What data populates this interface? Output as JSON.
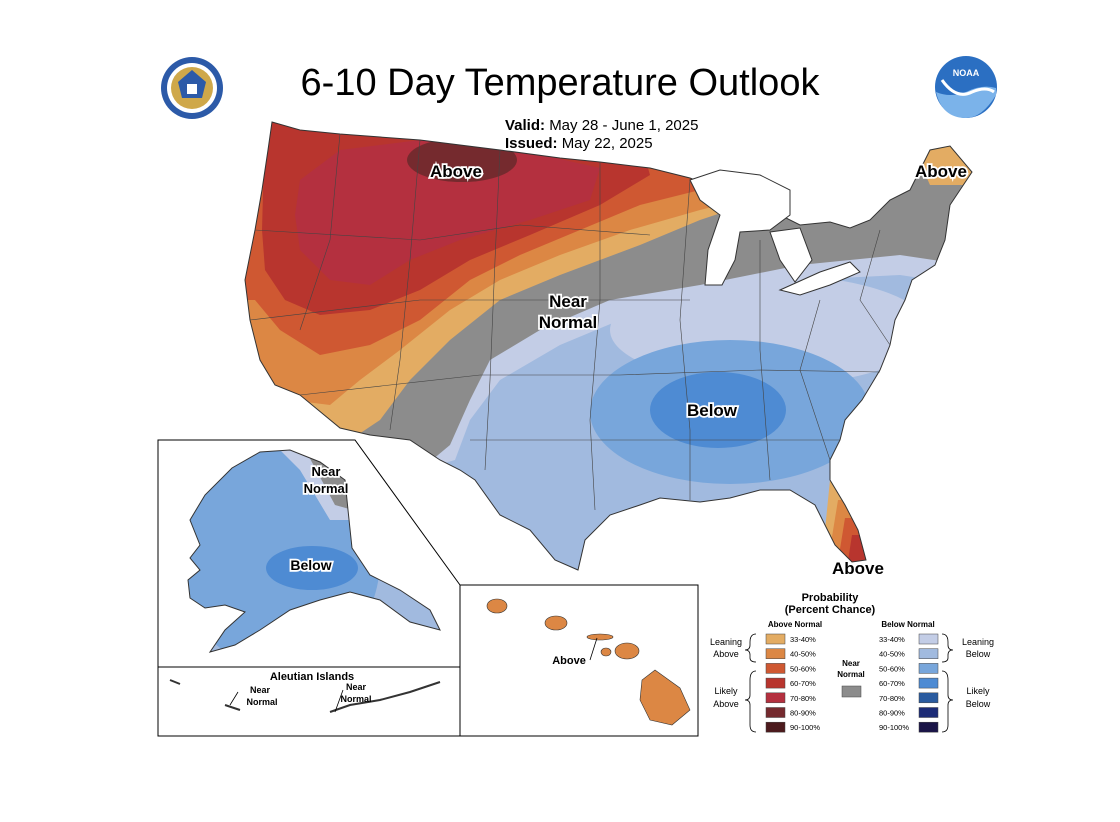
{
  "header": {
    "title": "6-10 Day Temperature Outlook",
    "valid_label": "Valid:",
    "valid_dates": "May 28 - June 1, 2025",
    "issued_label": "Issued:",
    "issued_date": "May 22, 2025"
  },
  "logos": {
    "left": "department-of-commerce-seal",
    "right": "NOAA"
  },
  "map_labels": {
    "north_above": "Above",
    "maine_above": "Above",
    "near_normal_line1": "Near",
    "near_normal_line2": "Normal",
    "southeast_below": "Below",
    "florida_above": "Above"
  },
  "alaska": {
    "near_line1": "Near",
    "near_line2": "Normal",
    "below": "Below"
  },
  "aleutian": {
    "title": "Aleutian Islands",
    "left_line1": "Near",
    "left_line2": "Normal",
    "right_line1": "Near",
    "right_line2": "Normal"
  },
  "hawaii": {
    "label": "Above"
  },
  "legend": {
    "title_line1": "Probability",
    "title_line2": "(Percent Chance)",
    "above_header": "Above Normal",
    "below_header": "Below Normal",
    "leaning_above_1": "Leaning",
    "leaning_above_2": "Above",
    "likely_above_1": "Likely",
    "likely_above_2": "Above",
    "leaning_below_1": "Leaning",
    "leaning_below_2": "Below",
    "likely_below_1": "Likely",
    "likely_below_2": "Below",
    "near_line1": "Near",
    "near_line2": "Normal",
    "near_color": "#8c8c8c",
    "above": [
      {
        "range": "33-40%",
        "color": "#e3ac63"
      },
      {
        "range": "40-50%",
        "color": "#dc8744"
      },
      {
        "range": "50-60%",
        "color": "#cf5832"
      },
      {
        "range": "60-70%",
        "color": "#b8352e"
      },
      {
        "range": "70-80%",
        "color": "#b4303f"
      },
      {
        "range": "80-90%",
        "color": "#752a2e"
      },
      {
        "range": "90-100%",
        "color": "#4c1a1d"
      }
    ],
    "below": [
      {
        "range": "33-40%",
        "color": "#c3cde6"
      },
      {
        "range": "40-50%",
        "color": "#a1badf"
      },
      {
        "range": "50-60%",
        "color": "#78a6db"
      },
      {
        "range": "60-70%",
        "color": "#4e8bd3"
      },
      {
        "range": "70-80%",
        "color": "#2a5b9f"
      },
      {
        "range": "80-90%",
        "color": "#1c2b76"
      },
      {
        "range": "90-100%",
        "color": "#1a1447"
      }
    ]
  }
}
